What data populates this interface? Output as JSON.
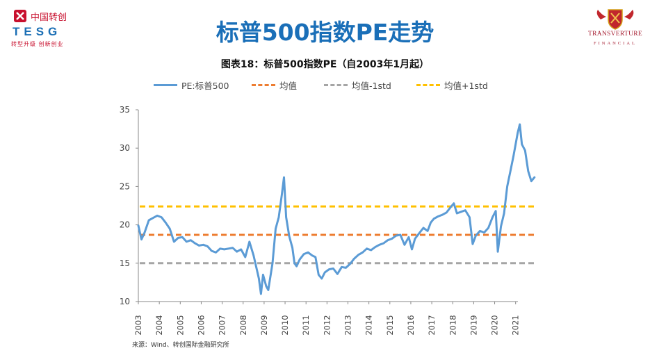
{
  "header": {
    "title": "标普500指数PE走势",
    "logo_left": {
      "cn": "中国转创",
      "en": "TESG",
      "tagline": "转型升级 创新创业"
    },
    "logo_right": {
      "name": "TRANSVERTURE",
      "sub": "FINANCIAL"
    }
  },
  "source": "来源：Wind、转创国际金融研究所",
  "colors": {
    "pe": "#5b9bd5",
    "mean": "#ed7d31",
    "minus": "#a5a5a5",
    "plus": "#ffc000",
    "title": "#1a6fb8"
  },
  "chart_data": {
    "type": "line",
    "title": "图表18：标普500指数PE（自2003年1月起）",
    "ylim": [
      10,
      35
    ],
    "yticks": [
      10,
      15,
      20,
      25,
      30,
      35
    ],
    "xlim": [
      2003,
      2021.9
    ],
    "xticks": [
      "2003",
      "2004",
      "2005",
      "2006",
      "2007",
      "2008",
      "2009",
      "2010",
      "2011",
      "2012",
      "2013",
      "2014",
      "2015",
      "2016",
      "2017",
      "2018",
      "2019",
      "2020",
      "2021"
    ],
    "grid": false,
    "legend_position": "top",
    "series": [
      {
        "name": "PE:标普500",
        "style": "solid",
        "points": [
          [
            2003.0,
            19.9
          ],
          [
            2003.15,
            18.1
          ],
          [
            2003.3,
            19.0
          ],
          [
            2003.5,
            20.6
          ],
          [
            2003.7,
            20.9
          ],
          [
            2003.9,
            21.2
          ],
          [
            2004.1,
            21.0
          ],
          [
            2004.3,
            20.3
          ],
          [
            2004.5,
            19.5
          ],
          [
            2004.7,
            17.8
          ],
          [
            2004.9,
            18.3
          ],
          [
            2005.1,
            18.4
          ],
          [
            2005.3,
            17.8
          ],
          [
            2005.5,
            18.0
          ],
          [
            2005.7,
            17.6
          ],
          [
            2005.9,
            17.3
          ],
          [
            2006.1,
            17.4
          ],
          [
            2006.3,
            17.2
          ],
          [
            2006.5,
            16.6
          ],
          [
            2006.7,
            16.4
          ],
          [
            2006.9,
            16.9
          ],
          [
            2007.1,
            16.8
          ],
          [
            2007.3,
            16.9
          ],
          [
            2007.5,
            17.0
          ],
          [
            2007.7,
            16.5
          ],
          [
            2007.9,
            16.8
          ],
          [
            2008.1,
            15.8
          ],
          [
            2008.3,
            17.8
          ],
          [
            2008.5,
            16.0
          ],
          [
            2008.75,
            13.0
          ],
          [
            2008.85,
            11.0
          ],
          [
            2008.95,
            13.5
          ],
          [
            2009.1,
            12.0
          ],
          [
            2009.2,
            11.5
          ],
          [
            2009.4,
            15.0
          ],
          [
            2009.55,
            19.5
          ],
          [
            2009.7,
            21.0
          ],
          [
            2009.85,
            24.0
          ],
          [
            2009.95,
            26.2
          ],
          [
            2010.05,
            21.0
          ],
          [
            2010.2,
            18.5
          ],
          [
            2010.35,
            17.0
          ],
          [
            2010.45,
            15.0
          ],
          [
            2010.55,
            14.6
          ],
          [
            2010.7,
            15.5
          ],
          [
            2010.9,
            16.2
          ],
          [
            2011.1,
            16.4
          ],
          [
            2011.3,
            16.0
          ],
          [
            2011.45,
            15.8
          ],
          [
            2011.6,
            13.5
          ],
          [
            2011.75,
            13.0
          ],
          [
            2011.9,
            13.8
          ],
          [
            2012.1,
            14.2
          ],
          [
            2012.3,
            14.3
          ],
          [
            2012.5,
            13.6
          ],
          [
            2012.7,
            14.5
          ],
          [
            2012.9,
            14.4
          ],
          [
            2013.1,
            14.9
          ],
          [
            2013.3,
            15.6
          ],
          [
            2013.5,
            16.1
          ],
          [
            2013.7,
            16.4
          ],
          [
            2013.9,
            16.9
          ],
          [
            2014.1,
            16.7
          ],
          [
            2014.3,
            17.1
          ],
          [
            2014.5,
            17.4
          ],
          [
            2014.7,
            17.6
          ],
          [
            2014.9,
            18.0
          ],
          [
            2015.1,
            18.2
          ],
          [
            2015.3,
            18.6
          ],
          [
            2015.5,
            18.7
          ],
          [
            2015.7,
            17.4
          ],
          [
            2015.9,
            18.4
          ],
          [
            2016.05,
            16.8
          ],
          [
            2016.2,
            18.2
          ],
          [
            2016.4,
            18.9
          ],
          [
            2016.6,
            19.6
          ],
          [
            2016.8,
            19.2
          ],
          [
            2016.95,
            20.3
          ],
          [
            2017.1,
            20.8
          ],
          [
            2017.3,
            21.1
          ],
          [
            2017.5,
            21.3
          ],
          [
            2017.7,
            21.6
          ],
          [
            2017.9,
            22.3
          ],
          [
            2018.05,
            22.8
          ],
          [
            2018.2,
            21.5
          ],
          [
            2018.4,
            21.7
          ],
          [
            2018.6,
            21.9
          ],
          [
            2018.8,
            21.0
          ],
          [
            2018.95,
            17.5
          ],
          [
            2019.1,
            18.6
          ],
          [
            2019.3,
            19.2
          ],
          [
            2019.5,
            19.0
          ],
          [
            2019.7,
            19.6
          ],
          [
            2019.9,
            21.0
          ],
          [
            2020.05,
            21.8
          ],
          [
            2020.15,
            16.5
          ],
          [
            2020.3,
            19.8
          ],
          [
            2020.45,
            21.5
          ],
          [
            2020.6,
            25.0
          ],
          [
            2020.75,
            27.0
          ],
          [
            2020.9,
            29.0
          ],
          [
            2021.0,
            30.5
          ],
          [
            2021.1,
            32.0
          ],
          [
            2021.2,
            33.1
          ],
          [
            2021.3,
            30.5
          ],
          [
            2021.45,
            29.7
          ],
          [
            2021.6,
            27.0
          ],
          [
            2021.75,
            25.7
          ],
          [
            2021.9,
            26.2
          ]
        ]
      },
      {
        "name": "均值",
        "style": "dashed",
        "constant": 18.7
      },
      {
        "name": "均值-1std",
        "style": "dashed",
        "constant": 15.0
      },
      {
        "name": "均值+1std",
        "style": "dashed",
        "constant": 22.4
      }
    ]
  }
}
